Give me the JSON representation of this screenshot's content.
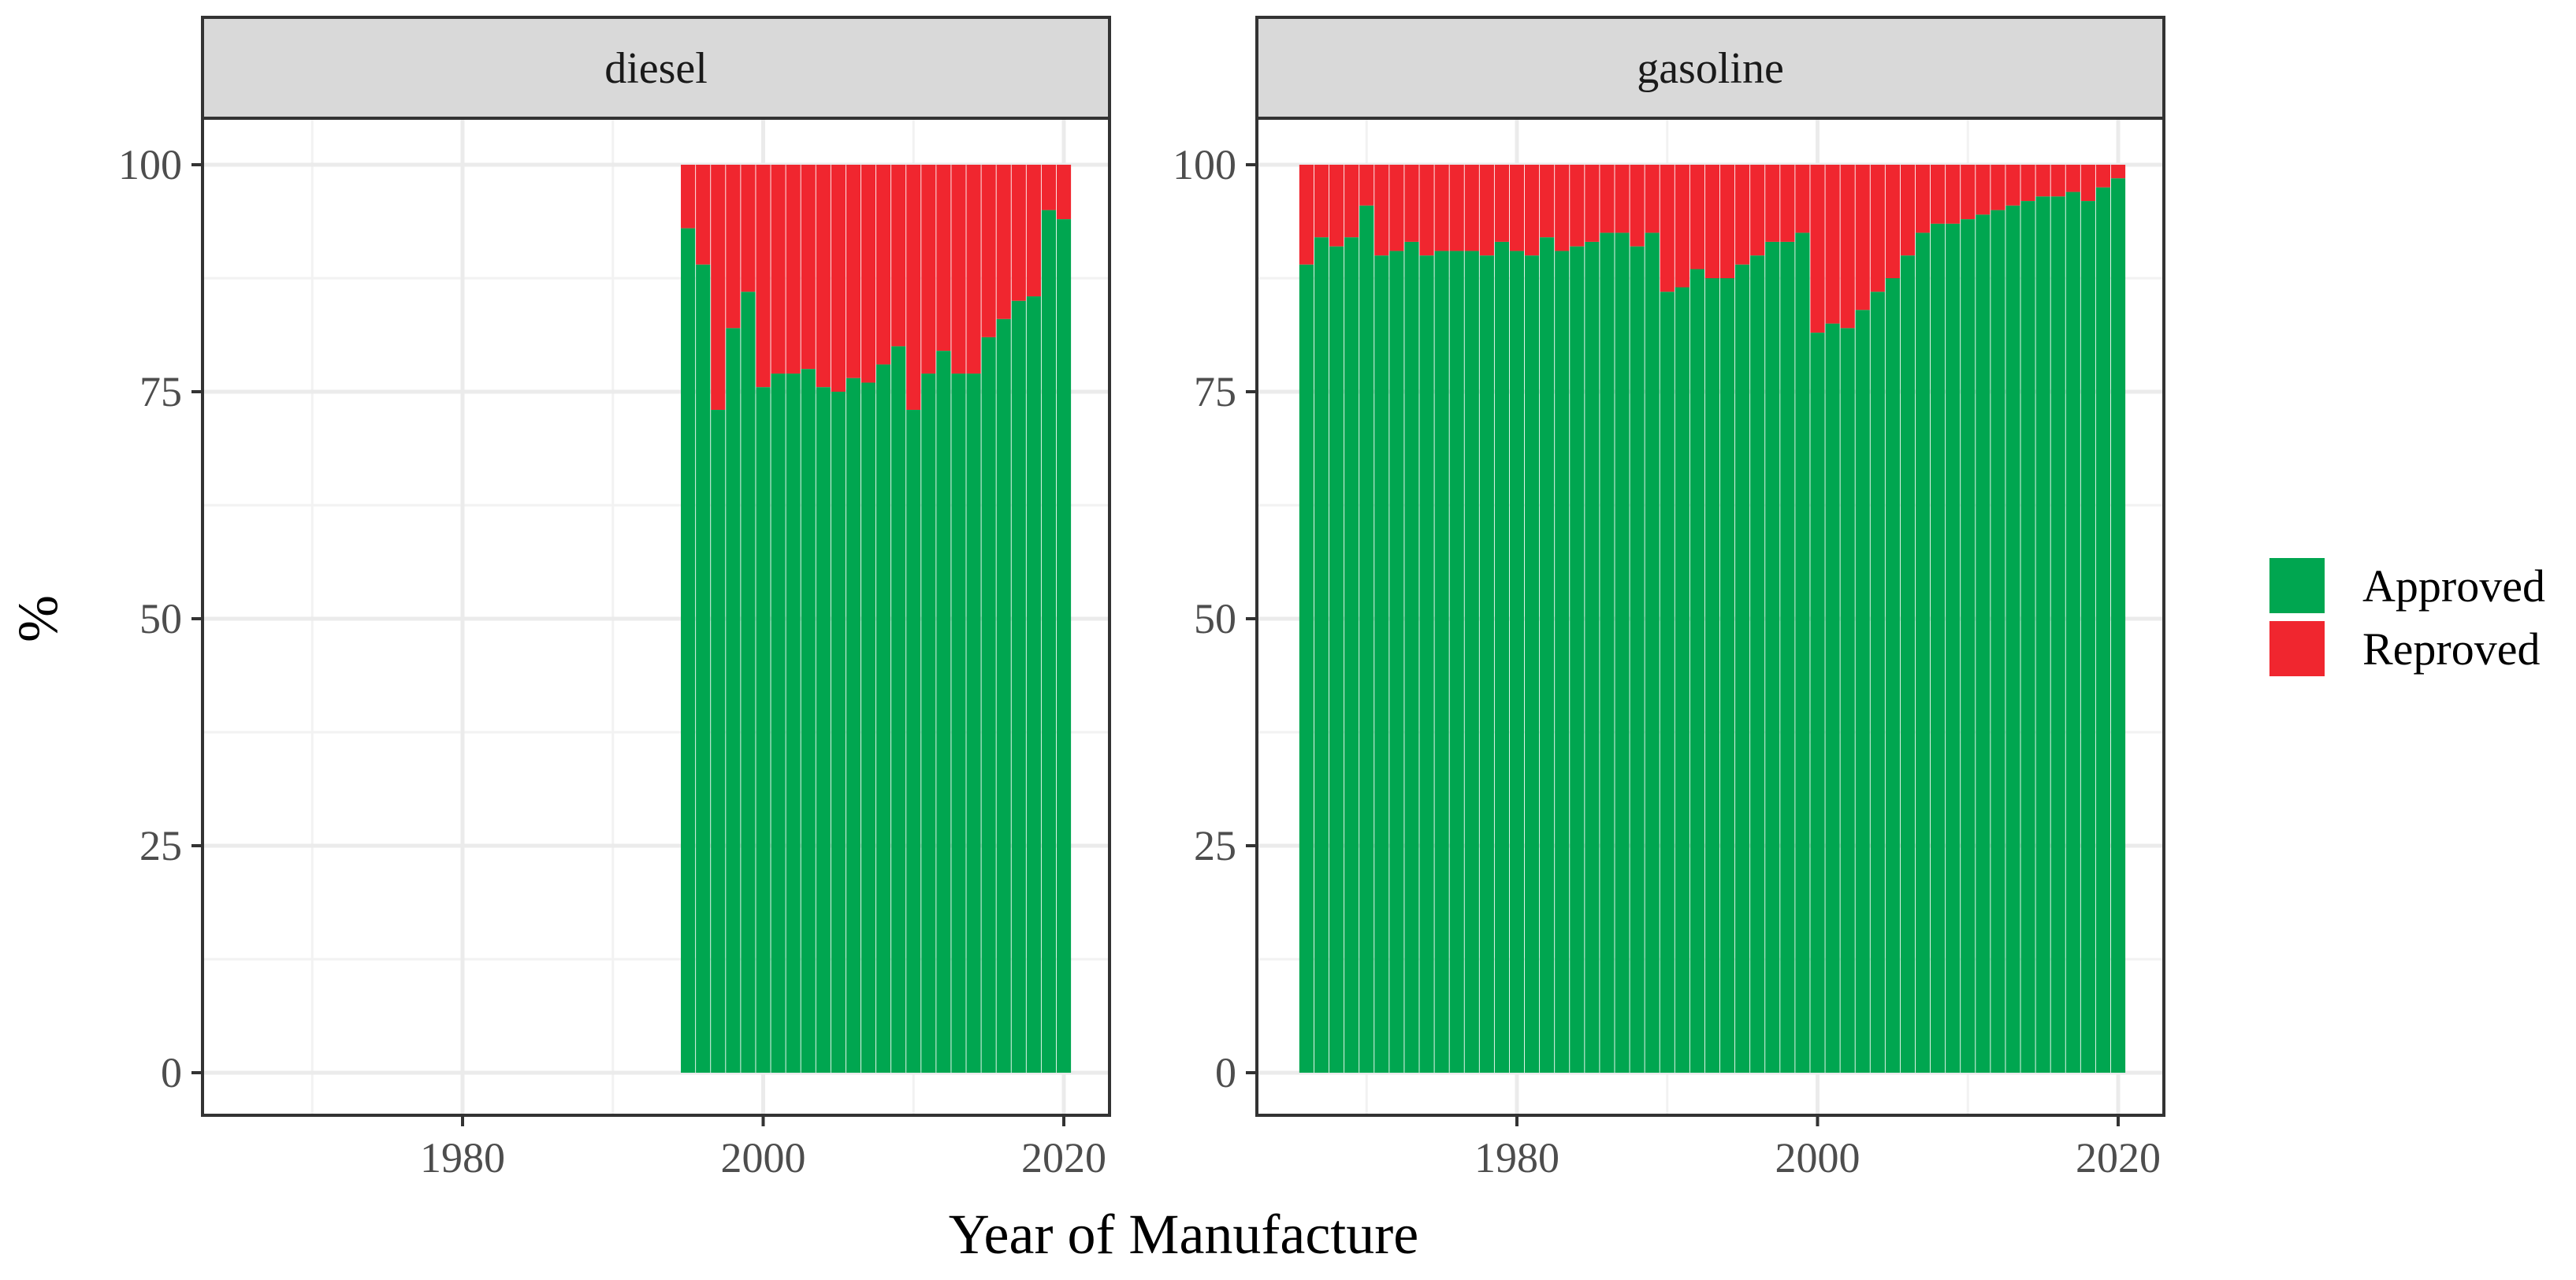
{
  "chart_data": {
    "type": "bar",
    "stacked": true,
    "facet_by": "fuel",
    "xlabel": "Year of Manufacture",
    "ylabel": "%",
    "ylim": [
      0,
      105
    ],
    "xlim": [
      1963,
      2023
    ],
    "x_ticks": [
      "1980",
      "2000",
      "2020"
    ],
    "y_ticks": [
      "0",
      "25",
      "50",
      "75",
      "100"
    ],
    "legend": {
      "position": "right",
      "items": [
        {
          "label": "Approved",
          "color": "#00A650"
        },
        {
          "label": "Reproved",
          "color": "#F0262F"
        }
      ]
    },
    "colors": {
      "approved": "#00A650",
      "reproved": "#F0262F",
      "grid": "#ebebeb",
      "strip": "#d9d9d9",
      "border": "#333333"
    },
    "panels": [
      {
        "label": "diesel",
        "years": [
          1995,
          1996,
          1997,
          1998,
          1999,
          2000,
          2001,
          2002,
          2003,
          2004,
          2005,
          2006,
          2007,
          2008,
          2009,
          2010,
          2011,
          2012,
          2013,
          2014,
          2015,
          2016,
          2017,
          2018,
          2019,
          2020
        ],
        "approved": [
          93,
          89,
          73,
          82,
          86,
          75.5,
          77,
          77,
          77.5,
          75.5,
          75,
          76.5,
          76,
          78,
          80,
          73,
          77,
          79.5,
          77,
          77,
          81,
          83,
          85,
          85.5,
          95,
          94
        ],
        "reproved": [
          7,
          11,
          27,
          18,
          14,
          24.5,
          23,
          23,
          22.5,
          24.5,
          25,
          23.5,
          24,
          22,
          20,
          27,
          23,
          20.5,
          23,
          23,
          19,
          17,
          15,
          14.5,
          5,
          6
        ]
      },
      {
        "label": "gasoline",
        "years": [
          1966,
          1967,
          1968,
          1969,
          1970,
          1971,
          1972,
          1973,
          1974,
          1975,
          1976,
          1977,
          1978,
          1979,
          1980,
          1981,
          1982,
          1983,
          1984,
          1985,
          1986,
          1987,
          1988,
          1989,
          1990,
          1991,
          1992,
          1993,
          1994,
          1995,
          1996,
          1997,
          1998,
          1999,
          2000,
          2001,
          2002,
          2003,
          2004,
          2005,
          2006,
          2007,
          2008,
          2009,
          2010,
          2011,
          2012,
          2013,
          2014,
          2015,
          2016,
          2017,
          2018,
          2019,
          2020
        ],
        "approved": [
          89,
          92,
          91,
          92,
          95.5,
          90,
          90.5,
          91.5,
          90,
          90.5,
          90.5,
          90.5,
          90,
          91.5,
          90.5,
          90,
          92,
          90.5,
          91,
          91.5,
          92.5,
          92.5,
          91,
          92.5,
          86,
          86.5,
          88.5,
          87.5,
          87.5,
          89,
          90,
          91.5,
          91.5,
          92.5,
          81.5,
          82.5,
          82,
          84,
          86,
          87.5,
          90,
          92.5,
          93.5,
          93.5,
          94,
          94.5,
          95,
          95.5,
          96,
          96.5,
          96.5,
          97,
          96,
          97.5,
          98.5
        ],
        "reproved": [
          11,
          8,
          9,
          8,
          4.5,
          10,
          9.5,
          8.5,
          10,
          9.5,
          9.5,
          9.5,
          10,
          8.5,
          9.5,
          10,
          8,
          9.5,
          9,
          8.5,
          7.5,
          7.5,
          9,
          7.5,
          14,
          13.5,
          11.5,
          12.5,
          12.5,
          11,
          10,
          8.5,
          8.5,
          7.5,
          18.5,
          17.5,
          18,
          16,
          14,
          12.5,
          10,
          7.5,
          6.5,
          6.5,
          6,
          5.5,
          5,
          4.5,
          4,
          3.5,
          3.5,
          3,
          4,
          2.5,
          1.5
        ]
      }
    ]
  }
}
